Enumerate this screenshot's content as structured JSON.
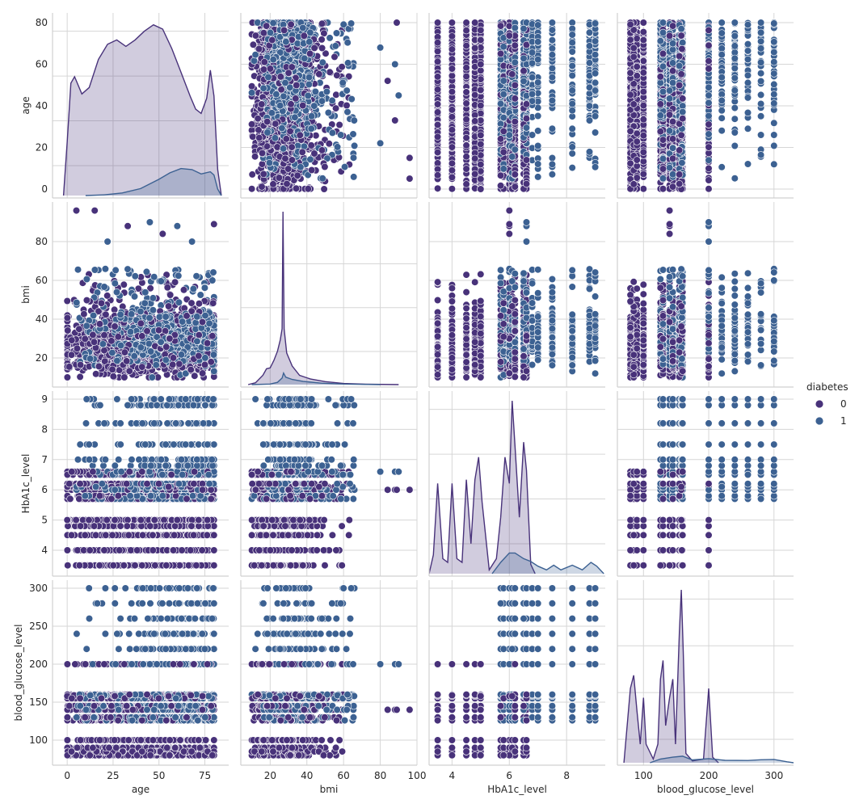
{
  "chart_data": {
    "type": "scatter",
    "kind": "pairplot",
    "variables": [
      "age",
      "bmi",
      "HbA1c_level",
      "blood_glucose_level"
    ],
    "hue": {
      "title": "diabetes",
      "levels": [
        "0",
        "1"
      ],
      "colors": {
        "0": "#48327a",
        "1": "#3c6192"
      }
    },
    "style": {
      "grid": true,
      "spine_color": "#d0d0d0",
      "grid_color": "#d6d6d6"
    },
    "axes": {
      "age": {
        "label": "age",
        "range": [
          -8,
          88
        ],
        "ticks": [
          0,
          25,
          50,
          75
        ],
        "row_ticks": [
          0,
          20,
          40,
          60,
          80
        ]
      },
      "bmi": {
        "label": "bmi",
        "range": [
          4,
          100
        ],
        "ticks": [
          20,
          40,
          60,
          80,
          100
        ],
        "row_ticks": [
          20,
          40,
          60,
          80
        ]
      },
      "HbA1c_level": {
        "label": "HbA1c_level",
        "range": [
          3.2,
          9.35
        ],
        "ticks": [
          4,
          6,
          8
        ],
        "row_ticks": [
          4,
          5,
          6,
          7,
          8,
          9
        ]
      },
      "blood_glucose_level": {
        "label": "blood_glucose_level",
        "range": [
          60,
          330
        ],
        "ticks": [
          100,
          200,
          300
        ],
        "row_ticks": [
          100,
          150,
          200,
          250,
          300
        ]
      }
    },
    "discrete_values": {
      "HbA1c_level": [
        3.5,
        4.0,
        4.5,
        4.8,
        5.0,
        5.7,
        5.8,
        6.0,
        6.1,
        6.2,
        6.5,
        6.6,
        6.8,
        7.0,
        7.5,
        8.2,
        8.8,
        9.0
      ],
      "blood_glucose_level": [
        80,
        85,
        90,
        100,
        126,
        130,
        140,
        145,
        155,
        158,
        159,
        160,
        200,
        220,
        240,
        260,
        280,
        300
      ]
    },
    "hba1c_by_class": {
      "0": [
        3.5,
        4.0,
        4.5,
        4.8,
        5.0,
        5.7,
        5.8,
        6.0,
        6.1,
        6.2,
        6.5,
        6.6
      ],
      "1": [
        5.7,
        5.8,
        6.0,
        6.1,
        6.2,
        6.5,
        6.6,
        6.8,
        7.0,
        7.5,
        8.2,
        8.8,
        9.0
      ]
    },
    "glucose_by_class": {
      "0": [
        80,
        85,
        90,
        100,
        126,
        130,
        140,
        145,
        155,
        158,
        159,
        160,
        200
      ],
      "1": [
        126,
        130,
        140,
        145,
        155,
        158,
        159,
        160,
        200,
        220,
        240,
        260,
        280,
        300
      ]
    },
    "diagonal_kde": {
      "age": {
        "0": [
          [
            -2,
            0
          ],
          [
            0,
            25
          ],
          [
            2,
            52
          ],
          [
            4,
            55
          ],
          [
            8,
            47
          ],
          [
            12,
            50
          ],
          [
            17,
            63
          ],
          [
            22,
            70
          ],
          [
            27,
            72
          ],
          [
            32,
            69
          ],
          [
            37,
            72
          ],
          [
            42,
            76
          ],
          [
            47,
            79
          ],
          [
            52,
            77
          ],
          [
            57,
            68
          ],
          [
            62,
            57
          ],
          [
            67,
            46
          ],
          [
            70,
            40
          ],
          [
            73,
            38
          ],
          [
            76,
            45
          ],
          [
            78,
            58
          ],
          [
            80,
            46
          ],
          [
            82,
            12
          ],
          [
            84,
            0
          ]
        ],
        "1": [
          [
            10,
            0
          ],
          [
            20,
            0.3
          ],
          [
            30,
            1.2
          ],
          [
            40,
            3.2
          ],
          [
            50,
            7.5
          ],
          [
            56,
            10.5
          ],
          [
            62,
            12.5
          ],
          [
            68,
            12
          ],
          [
            73,
            10
          ],
          [
            78,
            11
          ],
          [
            80,
            9.5
          ],
          [
            82,
            3
          ],
          [
            84,
            0
          ]
        ]
      },
      "bmi": {
        "0": [
          [
            8,
            0
          ],
          [
            12,
            1
          ],
          [
            16,
            5
          ],
          [
            18,
            8.5
          ],
          [
            20,
            9
          ],
          [
            22,
            13
          ],
          [
            24,
            18
          ],
          [
            25.5,
            24
          ],
          [
            26.5,
            30
          ],
          [
            27,
            93
          ],
          [
            27.6,
            30
          ],
          [
            29,
            17
          ],
          [
            32,
            10
          ],
          [
            36,
            5
          ],
          [
            42,
            3
          ],
          [
            50,
            1.6
          ],
          [
            60,
            0.6
          ],
          [
            72,
            0.2
          ],
          [
            90,
            0
          ]
        ],
        "1": [
          [
            10,
            0
          ],
          [
            20,
            0.3
          ],
          [
            24,
            1.2
          ],
          [
            26.5,
            3.5
          ],
          [
            27.3,
            6.2
          ],
          [
            28.5,
            4
          ],
          [
            32,
            2.8
          ],
          [
            38,
            1.7
          ],
          [
            48,
            0.8
          ],
          [
            60,
            0.3
          ],
          [
            80,
            0
          ]
        ]
      },
      "HbA1c_level": {
        "0": [
          [
            3.2,
            0
          ],
          [
            3.35,
            10
          ],
          [
            3.5,
            48
          ],
          [
            3.68,
            8
          ],
          [
            3.85,
            6
          ],
          [
            4.0,
            48
          ],
          [
            4.17,
            8
          ],
          [
            4.35,
            6
          ],
          [
            4.5,
            50
          ],
          [
            4.66,
            16
          ],
          [
            4.8,
            50
          ],
          [
            4.93,
            62
          ],
          [
            5.05,
            38
          ],
          [
            5.3,
            2
          ],
          [
            5.55,
            8
          ],
          [
            5.7,
            30
          ],
          [
            5.85,
            62
          ],
          [
            6.0,
            48
          ],
          [
            6.1,
            92
          ],
          [
            6.2,
            68
          ],
          [
            6.35,
            30
          ],
          [
            6.5,
            70
          ],
          [
            6.6,
            55
          ],
          [
            6.75,
            5
          ],
          [
            6.9,
            0
          ]
        ],
        "1": [
          [
            5.4,
            0
          ],
          [
            5.7,
            6
          ],
          [
            6.0,
            11
          ],
          [
            6.2,
            11
          ],
          [
            6.5,
            8
          ],
          [
            6.75,
            6.5
          ],
          [
            7.0,
            4
          ],
          [
            7.3,
            2
          ],
          [
            7.55,
            4.5
          ],
          [
            7.8,
            2
          ],
          [
            8.2,
            4.5
          ],
          [
            8.55,
            2
          ],
          [
            8.85,
            6
          ],
          [
            9.05,
            4
          ],
          [
            9.3,
            0
          ]
        ]
      },
      "blood_glucose_level": {
        "0": [
          [
            70,
            0
          ],
          [
            80,
            40
          ],
          [
            85,
            47
          ],
          [
            90,
            28
          ],
          [
            95,
            10
          ],
          [
            100,
            35
          ],
          [
            104,
            10
          ],
          [
            115,
            2
          ],
          [
            122,
            10
          ],
          [
            126,
            45
          ],
          [
            130,
            55
          ],
          [
            134,
            20
          ],
          [
            140,
            35
          ],
          [
            145,
            45
          ],
          [
            149,
            10
          ],
          [
            155,
            70
          ],
          [
            158,
            93
          ],
          [
            161,
            60
          ],
          [
            165,
            5
          ],
          [
            175,
            1
          ],
          [
            192,
            2
          ],
          [
            200,
            40
          ],
          [
            206,
            3
          ],
          [
            215,
            0
          ]
        ],
        "1": [
          [
            110,
            0
          ],
          [
            126,
            2
          ],
          [
            145,
            3
          ],
          [
            160,
            3.5
          ],
          [
            175,
            1.5
          ],
          [
            200,
            2.2
          ],
          [
            225,
            1.3
          ],
          [
            260,
            1.2
          ],
          [
            280,
            1.6
          ],
          [
            300,
            1.8
          ],
          [
            320,
            0.5
          ],
          [
            330,
            0
          ]
        ]
      }
    }
  }
}
